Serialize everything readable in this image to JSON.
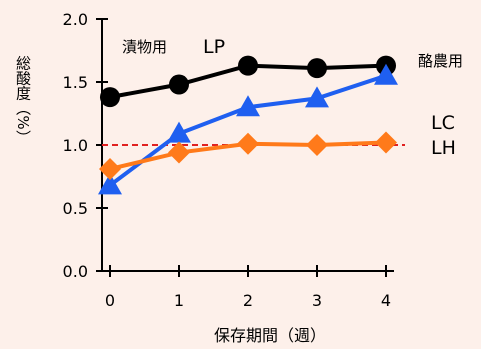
{
  "colors": {
    "background": "#fdf0ea",
    "LP": "#000000",
    "LC": "#1f5ff0",
    "LH": "#ff7a1a",
    "reference_line": "#e02020"
  },
  "chart_data": {
    "type": "line",
    "title": "",
    "xlabel": "保存期間（週）",
    "ylabel": "総酸度（%）",
    "x": [
      0,
      1,
      2,
      3,
      4
    ],
    "xticks": [
      "0",
      "1",
      "2",
      "3",
      "4"
    ],
    "yticks": [
      "0.0",
      "0.5",
      "1.0",
      "1.5",
      "2.0"
    ],
    "ylim": [
      0,
      2.0
    ],
    "xlim": [
      0,
      4
    ],
    "grid": false,
    "series": [
      {
        "name": "LP",
        "marker": "circle",
        "color": "#000000",
        "values": [
          1.38,
          1.48,
          1.63,
          1.61,
          1.63
        ]
      },
      {
        "name": "LC",
        "marker": "triangle",
        "color": "#1f5ff0",
        "values": [
          0.68,
          1.09,
          1.3,
          1.37,
          1.55
        ]
      },
      {
        "name": "LH",
        "marker": "diamond",
        "color": "#ff7a1a",
        "values": [
          0.81,
          0.94,
          1.01,
          1.0,
          1.02
        ]
      }
    ],
    "reference_line": {
      "y": 1.0,
      "style": "dashed",
      "color": "#e02020"
    },
    "annotations": {
      "lp_group": "漬物用",
      "lp_name": "LP",
      "dairy_group": "酪農用",
      "lc_name": "LC",
      "lh_name": "LH"
    }
  }
}
